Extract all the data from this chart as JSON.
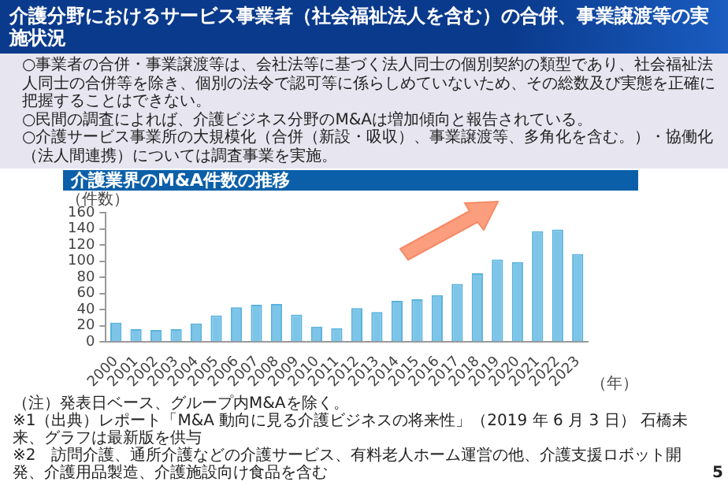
{
  "chart_data": {
    "type": "bar",
    "title": "介護分野におけるサービス事業者（社会福祉法人を含む）の合併、事業譲渡等の実施状況",
    "subtitle": "介護業界のM&A件数の推移",
    "ylabel": "（件数）",
    "xlabel": "（年）",
    "categories": [
      "2000",
      "2001",
      "2002",
      "2003",
      "2004",
      "2005",
      "2006",
      "2007",
      "2008",
      "2009",
      "2010",
      "2011",
      "2012",
      "2013",
      "2014",
      "2015",
      "2016",
      "2017",
      "2018",
      "2019",
      "2020",
      "2021",
      "2022",
      "2023"
    ],
    "values": [
      24,
      16,
      15,
      16,
      23,
      33,
      43,
      46,
      47,
      34,
      19,
      17,
      42,
      37,
      51,
      53,
      58,
      72,
      85,
      102,
      99,
      137,
      139,
      109
    ],
    "color": "#7dc5e8",
    "ylim": [
      0,
      160
    ],
    "yticks": [
      0,
      20,
      40,
      60,
      80,
      100,
      120,
      140,
      160
    ],
    "grid": false,
    "legend": false,
    "annotations": [
      "○事業者の合併・事業譲渡等は、会社法等に基づく法人同士の個別契約の類型であり、社会福祉法人同士の合併等を除き、個別の法令で認可等に係らしめていないため、その総数及び実態を正確に把握することはできない。",
      "○民間の調査によれば、介護ビジネス分野のM&Aは増加傾向と報告されている。",
      "○介護サービス事業所の大規模化（合併（新設・吸収）、事業譲渡等、多角化を含む。）・協働化（法人間連携）については調査事業を実施。",
      "（注）発表日ベース、グループ内M&Aを除く。",
      "※1（出典）レポート「M&A 動向に見る介護ビジネスの将来性」（2019 年 6 月 3 日） 石橋未来、グラフは最新版を供与",
      "※2　訪問介護、通所介護などの介護サービス、有料老人ホーム運営の他、介護支援ロボット開発、介護用品製造、介護施設向け食品を含む",
      "5"
    ]
  }
}
